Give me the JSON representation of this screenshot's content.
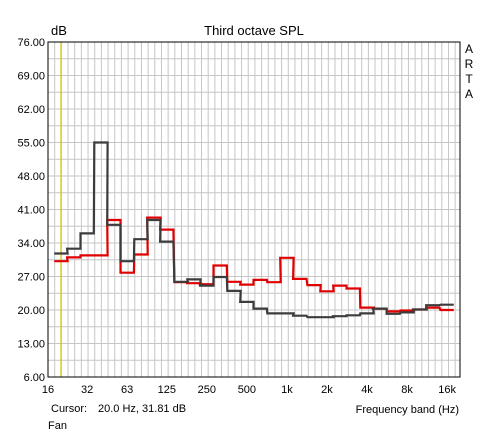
{
  "chart_data": {
    "type": "line",
    "title": "Third octave SPL",
    "ylabel": "dB",
    "xlabel": "Frequency band (Hz)",
    "watermark": "ARTA",
    "x_scale": "log",
    "ylim": [
      6.0,
      76.0
    ],
    "grid": true,
    "yticks": [
      "76.00",
      "69.00",
      "62.00",
      "55.00",
      "48.00",
      "41.00",
      "34.00",
      "27.00",
      "20.00",
      "13.00",
      "6.00"
    ],
    "xtick_labels": [
      "16",
      "32",
      "63",
      "125",
      "250",
      "500",
      "1k",
      "2k",
      "4k",
      "8k",
      "16k"
    ],
    "xtick_values": [
      16,
      31.5,
      63,
      125,
      250,
      500,
      1000,
      2000,
      4000,
      8000,
      16000
    ],
    "bands": [
      20,
      25,
      31.5,
      40,
      50,
      63,
      80,
      100,
      125,
      160,
      200,
      250,
      315,
      400,
      500,
      630,
      800,
      1000,
      1250,
      1600,
      2000,
      2500,
      3150,
      4000,
      5000,
      6300,
      8000,
      10000,
      12500,
      16000
    ],
    "series": [
      {
        "color": "#e00000",
        "values": [
          30.2,
          31.0,
          31.4,
          31.4,
          38.8,
          27.8,
          31.6,
          39.3,
          36.8,
          25.8,
          25.6,
          25.4,
          29.3,
          25.9,
          25.3,
          26.3,
          25.8,
          30.9,
          26.5,
          25.2,
          23.9,
          25.1,
          24.5,
          20.5,
          20.3,
          19.7,
          19.9,
          20.1,
          20.5,
          20.0
        ]
      },
      {
        "color": "#3c3c3c",
        "values": [
          31.8,
          32.8,
          36.0,
          55.0,
          37.8,
          30.2,
          34.8,
          38.8,
          34.3,
          25.9,
          26.4,
          25.1,
          26.9,
          24.0,
          21.7,
          20.3,
          19.3,
          19.3,
          18.8,
          18.5,
          18.5,
          18.7,
          18.9,
          19.3,
          20.3,
          19.2,
          19.5,
          20.1,
          21.0,
          21.1
        ]
      }
    ],
    "cursor_color": "#d8c000",
    "cursor": {
      "label": "Cursor:",
      "readout": "20.0 Hz, 31.81 dB",
      "x": 20.0
    },
    "footer_label": "Fan"
  }
}
